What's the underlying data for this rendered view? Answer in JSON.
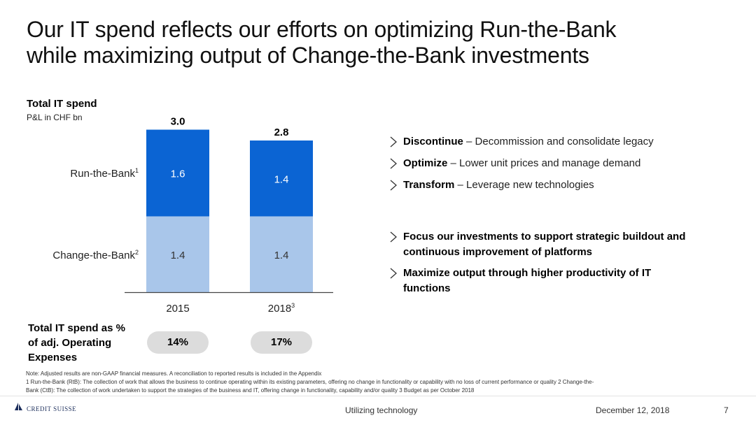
{
  "title": {
    "line1": "Our IT spend reflects our efforts on optimizing Run-the-Bank",
    "line2": "while maximizing output of Change-the-Bank investments"
  },
  "colors": {
    "run_bank": "#0b64d3",
    "change_bank": "#a9c6ea",
    "axis": "#444444",
    "pill": "#dcdcdc"
  },
  "chart_data": {
    "type": "bar",
    "stacked": true,
    "title": "Total IT spend",
    "subtitle": "P&L in CHF bn",
    "categories": [
      "2015",
      "2018"
    ],
    "category_superscripts": [
      "",
      "3"
    ],
    "series": [
      {
        "name": "Change-the-Bank",
        "superscript": "2",
        "values": [
          1.4,
          1.4
        ],
        "labels": [
          "1.4",
          "1.4"
        ]
      },
      {
        "name": "Run-the-Bank",
        "superscript": "1",
        "values": [
          1.6,
          1.4
        ],
        "labels": [
          "1.6",
          "1.4"
        ]
      }
    ],
    "totals": [
      "3.0",
      "2.8"
    ],
    "ylim": [
      0,
      3.0
    ],
    "legend": "left"
  },
  "bullets_top": [
    {
      "bold": "Discontinue",
      "text": " – Decommission and consolidate legacy"
    },
    {
      "bold": "Optimize",
      "text": " – Lower unit prices and manage demand"
    },
    {
      "bold": "Transform",
      "text": " – Leverage new technologies"
    }
  ],
  "bullets_bottom": [
    {
      "lines": [
        "Focus our investments to support strategic buildout and",
        "continuous improvement of platforms"
      ]
    },
    {
      "lines": [
        "Maximize output through higher productivity of IT",
        "functions"
      ]
    }
  ],
  "ratio": {
    "label_lines": [
      "Total IT spend as %",
      "of adj. Operating",
      "Expenses"
    ],
    "values": [
      "14%",
      "17%"
    ]
  },
  "footnotes": [
    "Note: Adjusted results are non-GAAP financial measures. A reconciliation to reported results is included in the Appendix",
    "1 Run-the-Bank (RtB): The collection of work that allows the business to continue operating within its existing parameters, offering no change in functionality or capability with no loss of current performance or quality     2 Change-the-",
    "Bank (CtB): The collection of work undertaken to support the strategies of the business and IT, offering change in functionality, capability and/or quality     3 Budget as per October 2018"
  ],
  "footer": {
    "logo": "CREDIT SUISSE",
    "section": "Utilizing technology",
    "date": "December 12, 2018",
    "page": "7"
  }
}
